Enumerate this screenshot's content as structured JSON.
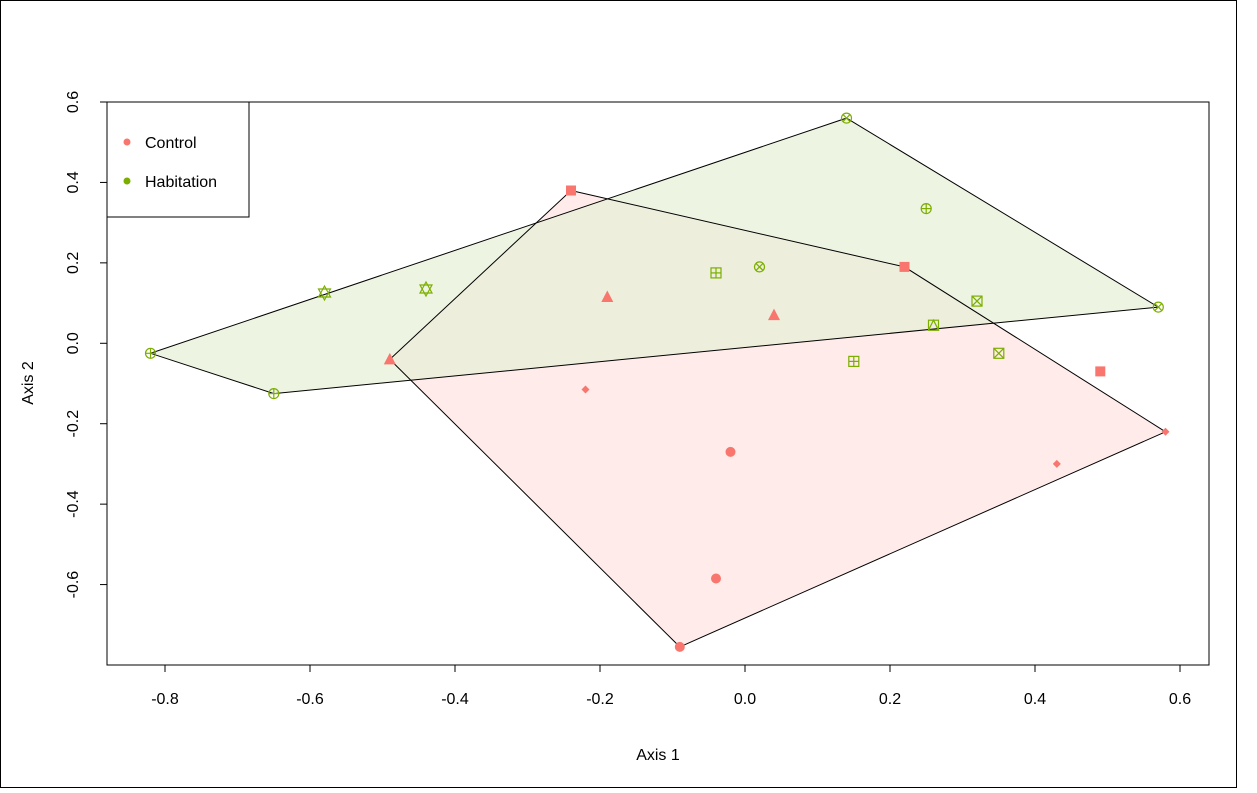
{
  "chart_data": {
    "type": "scatter",
    "title": "",
    "xlabel": "Axis 1",
    "ylabel": "Axis 2",
    "xlim": [
      -0.88,
      0.64
    ],
    "ylim": [
      -0.8,
      0.6
    ],
    "x_ticks": [
      -0.8,
      -0.6,
      -0.4,
      -0.2,
      0.0,
      0.2,
      0.4,
      0.6
    ],
    "y_ticks": [
      -0.6,
      -0.4,
      -0.2,
      0.0,
      0.2,
      0.4,
      0.6
    ],
    "x_tick_labels": [
      "-0.8",
      "-0.6",
      "-0.4",
      "-0.2",
      "0.0",
      "0.2",
      "0.4",
      "0.6"
    ],
    "y_tick_labels": [
      "-0.6",
      "-0.4",
      "-0.2",
      "0.0",
      "0.2",
      "0.4",
      "0.6"
    ],
    "grid": false,
    "legend": {
      "position": "top-left",
      "entries": [
        {
          "label": "Control",
          "color": "#F8766D"
        },
        {
          "label": "Habitation",
          "color": "#7CAE00"
        }
      ]
    },
    "series": [
      {
        "name": "Control",
        "color": "#F8766D",
        "hull_fill": "#FDE3E1",
        "points": [
          {
            "x": -0.24,
            "y": 0.38,
            "shape": "square"
          },
          {
            "x": 0.22,
            "y": 0.19,
            "shape": "square"
          },
          {
            "x": 0.49,
            "y": -0.07,
            "shape": "square"
          },
          {
            "x": -0.19,
            "y": 0.115,
            "shape": "triangle"
          },
          {
            "x": 0.04,
            "y": 0.07,
            "shape": "triangle"
          },
          {
            "x": -0.49,
            "y": -0.04,
            "shape": "triangle"
          },
          {
            "x": -0.22,
            "y": -0.115,
            "shape": "diamond"
          },
          {
            "x": 0.43,
            "y": -0.3,
            "shape": "diamond"
          },
          {
            "x": 0.58,
            "y": -0.22,
            "shape": "diamond"
          },
          {
            "x": -0.02,
            "y": -0.27,
            "shape": "circle"
          },
          {
            "x": -0.04,
            "y": -0.585,
            "shape": "circle"
          },
          {
            "x": -0.09,
            "y": -0.755,
            "shape": "circle"
          }
        ],
        "hull": [
          [
            -0.24,
            0.38
          ],
          [
            0.22,
            0.19
          ],
          [
            0.58,
            -0.22
          ],
          [
            -0.09,
            -0.755
          ],
          [
            -0.49,
            -0.04
          ]
        ]
      },
      {
        "name": "Habitation",
        "color": "#7CAE00",
        "hull_fill": "#E5F0D5",
        "points": [
          {
            "x": 0.14,
            "y": 0.56,
            "shape": "circle-x"
          },
          {
            "x": 0.25,
            "y": 0.335,
            "shape": "circle-plus"
          },
          {
            "x": 0.02,
            "y": 0.19,
            "shape": "circle-x"
          },
          {
            "x": -0.04,
            "y": 0.175,
            "shape": "square-plus"
          },
          {
            "x": 0.32,
            "y": 0.105,
            "shape": "square-x"
          },
          {
            "x": 0.26,
            "y": 0.045,
            "shape": "square-triangle"
          },
          {
            "x": 0.35,
            "y": -0.025,
            "shape": "square-x"
          },
          {
            "x": 0.15,
            "y": -0.045,
            "shape": "square-plus"
          },
          {
            "x": 0.57,
            "y": 0.09,
            "shape": "circle-x"
          },
          {
            "x": -0.58,
            "y": 0.125,
            "shape": "star-david"
          },
          {
            "x": -0.44,
            "y": 0.135,
            "shape": "star-david"
          },
          {
            "x": -0.82,
            "y": -0.025,
            "shape": "circle-plus"
          },
          {
            "x": -0.65,
            "y": -0.125,
            "shape": "circle-plus"
          }
        ],
        "hull": [
          [
            0.14,
            0.56
          ],
          [
            0.57,
            0.09
          ],
          [
            -0.65,
            -0.125
          ],
          [
            -0.82,
            -0.025
          ]
        ]
      }
    ]
  }
}
